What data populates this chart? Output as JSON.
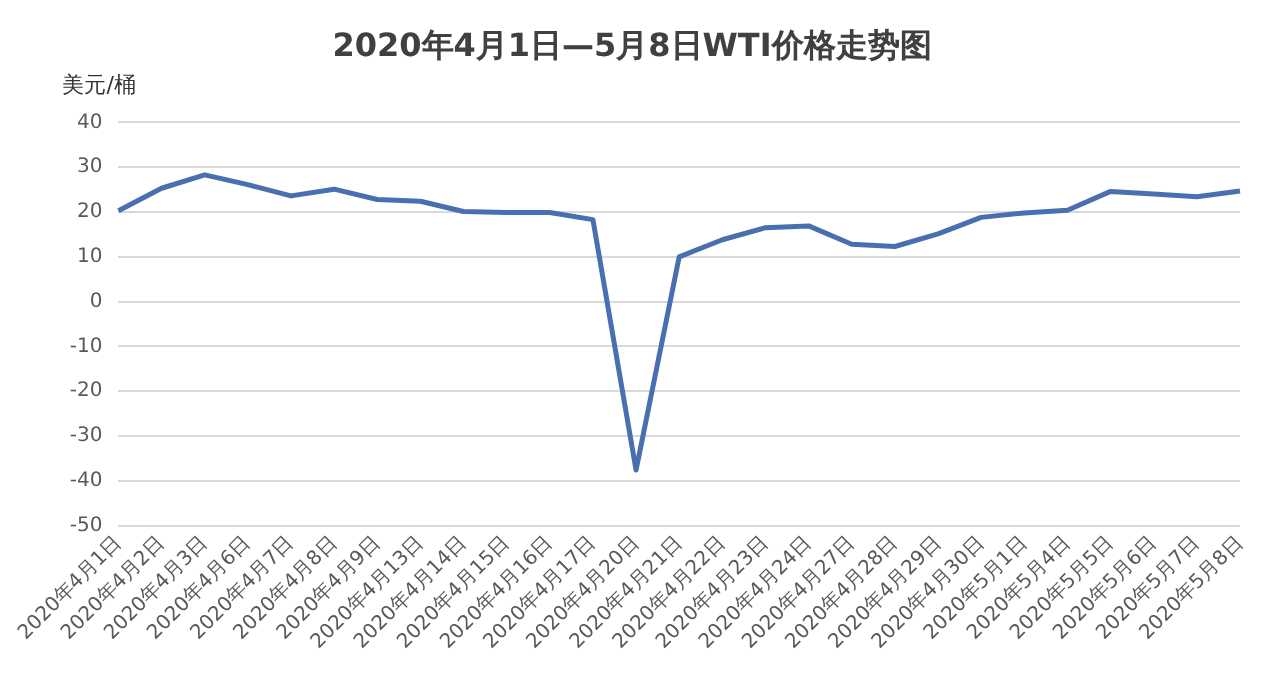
{
  "chart_data": {
    "type": "line",
    "title": "2020年4月1日—5月8日WTI价格走势图",
    "ylabel": "美元/桶",
    "categories": [
      "2020年4月1日",
      "2020年4月2日",
      "2020年4月3日",
      "2020年4月6日",
      "2020年4月7日",
      "2020年4月8日",
      "2020年4月9日",
      "2020年4月13日",
      "2020年4月14日",
      "2020年4月15日",
      "2020年4月16日",
      "2020年4月17日",
      "2020年4月20日",
      "2020年4月21日",
      "2020年4月22日",
      "2020年4月23日",
      "2020年4月24日",
      "2020年4月27日",
      "2020年4月28日",
      "2020年4月29日",
      "2020年4月30日",
      "2020年5月1日",
      "2020年5月4日",
      "2020年5月5日",
      "2020年5月6日",
      "2020年5月7日",
      "2020年5月8日"
    ],
    "series": [
      {
        "color": "#4a6fb0",
        "values": [
          20.3,
          25.3,
          28.3,
          26.1,
          23.6,
          25.1,
          22.8,
          22.4,
          20.1,
          19.9,
          19.9,
          18.3,
          -37.6,
          10.0,
          13.8,
          16.5,
          16.9,
          12.8,
          12.3,
          15.1,
          18.8,
          19.8,
          20.4,
          24.6,
          24.0,
          23.4,
          24.7
        ]
      }
    ],
    "ylim": [
      -50,
      40
    ],
    "yticks": [
      -50,
      -40,
      -30,
      -20,
      -10,
      0,
      10,
      20,
      30,
      40
    ],
    "grid": "y",
    "legend": false,
    "marker": "none",
    "line_style": "solid"
  }
}
